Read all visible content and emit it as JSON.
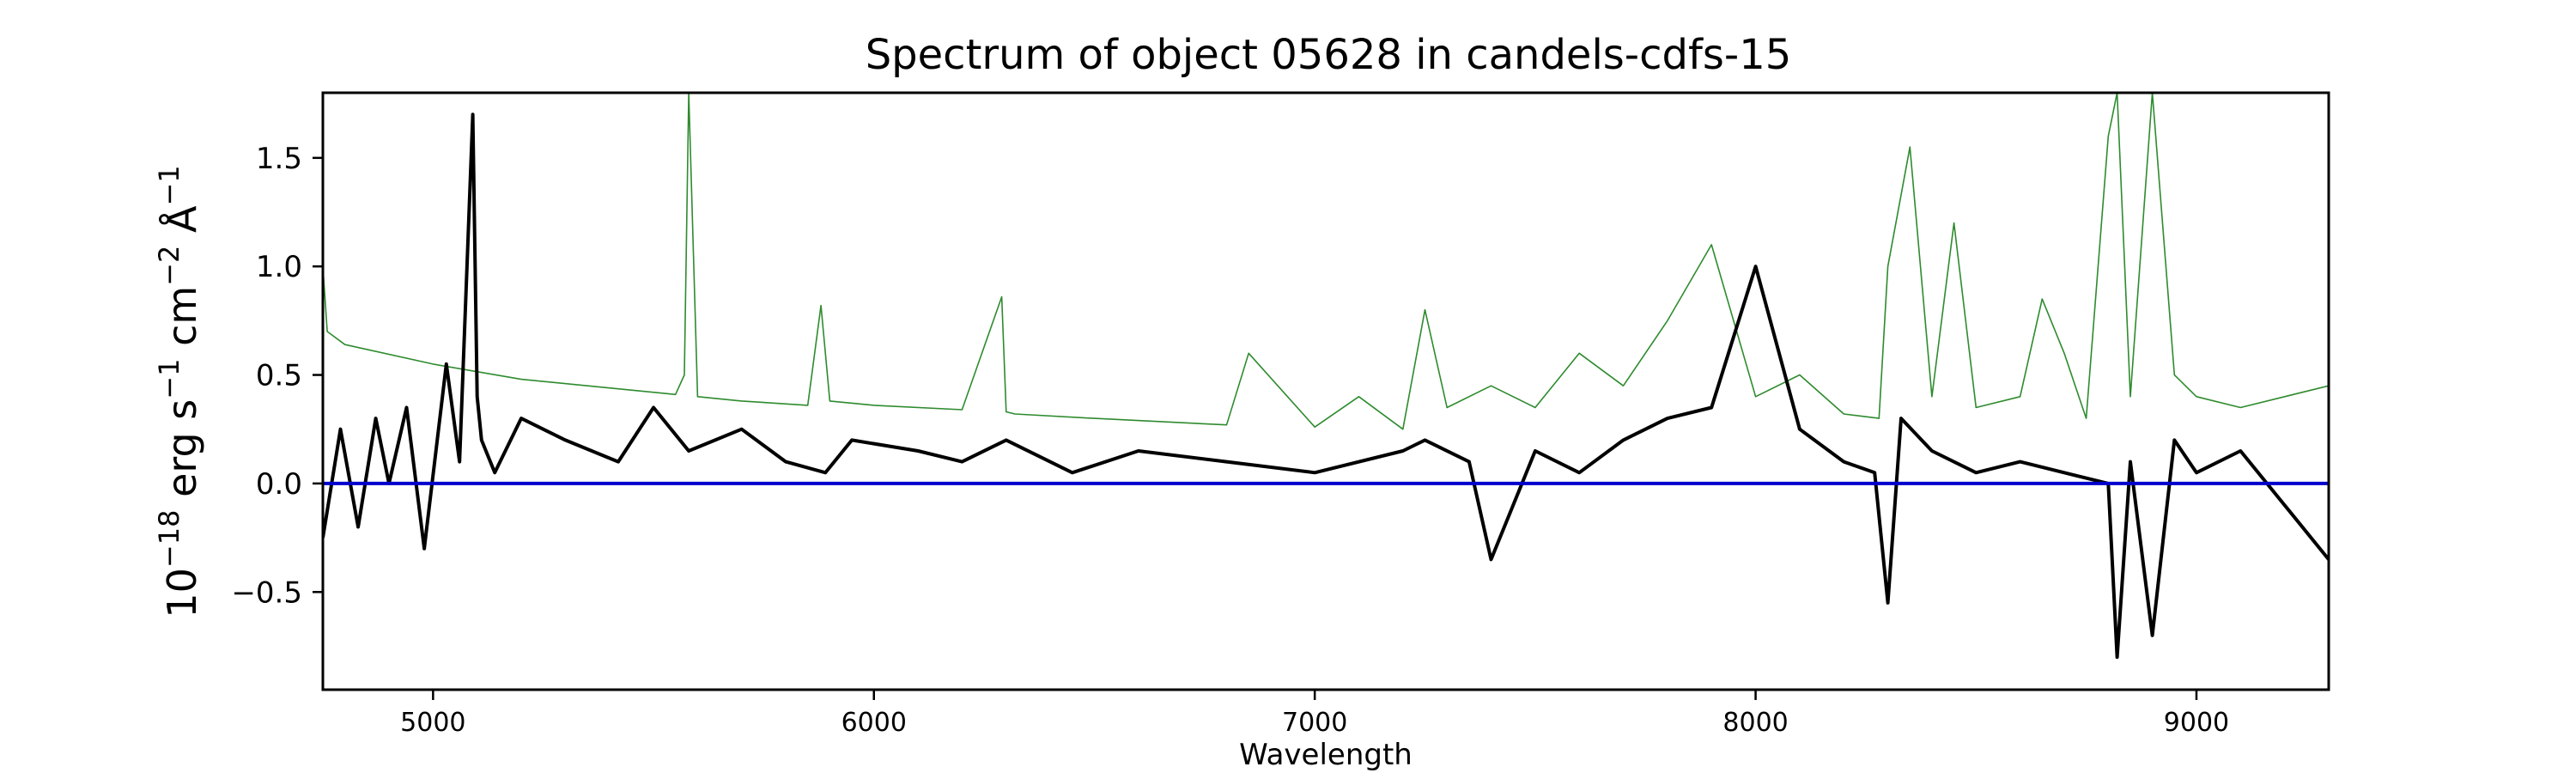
{
  "chart_data": {
    "type": "line",
    "title": "Spectrum of object 05628 in candels-cdfs-15",
    "xlabel": "Wavelength",
    "ylabel_base": "10",
    "ylabel_exp": "−18",
    "ylabel_unit_parts": [
      " erg s",
      "−1",
      " cm",
      "−2",
      " Å",
      "−1"
    ],
    "xlim": [
      4750,
      9300
    ],
    "ylim": [
      -0.95,
      1.8
    ],
    "x_ticks": [
      5000,
      6000,
      7000,
      8000,
      9000
    ],
    "y_ticks": [
      -0.5,
      0.0,
      0.5,
      1.0,
      1.5
    ],
    "x_tick_labels": [
      "5000",
      "6000",
      "7000",
      "8000",
      "9000"
    ],
    "y_tick_labels": [
      "−0.5",
      "0.0",
      "0.5",
      "1.0",
      "1.5"
    ],
    "grid": false,
    "colors": {
      "flux": "#000000",
      "noise": "#2e8b2e",
      "zero": "#0000cc"
    },
    "series": [
      {
        "key": "flux",
        "x": [
          4750,
          4790,
          4830,
          4870,
          4900,
          4940,
          4980,
          5030,
          5060,
          5090,
          5100,
          5110,
          5140,
          5200,
          5300,
          5420,
          5500,
          5580,
          5700,
          5800,
          5890,
          5950,
          6100,
          6200,
          6300,
          6450,
          6600,
          6800,
          7000,
          7200,
          7250,
          7350,
          7400,
          7500,
          7600,
          7700,
          7800,
          7900,
          8000,
          8100,
          8200,
          8270,
          8300,
          8330,
          8400,
          8500,
          8600,
          8700,
          8800,
          8820,
          8850,
          8900,
          8950,
          9000,
          9100,
          9200,
          9300
        ],
        "values": [
          -0.25,
          0.25,
          -0.2,
          0.3,
          0.0,
          0.35,
          -0.3,
          0.55,
          0.1,
          1.7,
          0.4,
          0.2,
          0.05,
          0.3,
          0.2,
          0.1,
          0.35,
          0.15,
          0.25,
          0.1,
          0.05,
          0.2,
          0.15,
          0.1,
          0.2,
          0.05,
          0.15,
          0.1,
          0.05,
          0.15,
          0.2,
          0.1,
          -0.35,
          0.15,
          0.05,
          0.2,
          0.3,
          0.35,
          1.0,
          0.25,
          0.1,
          0.05,
          -0.55,
          0.3,
          0.15,
          0.05,
          0.1,
          0.05,
          0.0,
          -0.8,
          0.1,
          -0.7,
          0.2,
          0.05,
          0.15,
          -0.1,
          -0.35
        ]
      },
      {
        "key": "noise",
        "x": [
          4750,
          4760,
          4800,
          5000,
          5200,
          5400,
          5550,
          5570,
          5580,
          5600,
          5700,
          5850,
          5880,
          5900,
          6000,
          6200,
          6290,
          6300,
          6320,
          6500,
          6800,
          6850,
          7000,
          7100,
          7200,
          7250,
          7300,
          7400,
          7500,
          7600,
          7700,
          7800,
          7900,
          8000,
          8100,
          8200,
          8280,
          8300,
          8350,
          8400,
          8450,
          8500,
          8600,
          8650,
          8700,
          8750,
          8800,
          8820,
          8850,
          8900,
          8950,
          9000,
          9100,
          9200,
          9300
        ],
        "values": [
          1.0,
          0.7,
          0.64,
          0.55,
          0.48,
          0.44,
          0.41,
          0.5,
          1.8,
          0.4,
          0.38,
          0.36,
          0.82,
          0.38,
          0.36,
          0.34,
          0.86,
          0.33,
          0.32,
          0.3,
          0.27,
          0.6,
          0.26,
          0.4,
          0.25,
          0.8,
          0.35,
          0.45,
          0.35,
          0.6,
          0.45,
          0.75,
          1.1,
          0.4,
          0.5,
          0.32,
          0.3,
          1.0,
          1.55,
          0.4,
          1.2,
          0.35,
          0.4,
          0.85,
          0.6,
          0.3,
          1.6,
          1.8,
          0.4,
          1.8,
          0.5,
          0.4,
          0.35,
          0.4,
          0.45
        ]
      },
      {
        "key": "zero",
        "x": [
          4750,
          9300
        ],
        "values": [
          0,
          0
        ]
      }
    ]
  }
}
